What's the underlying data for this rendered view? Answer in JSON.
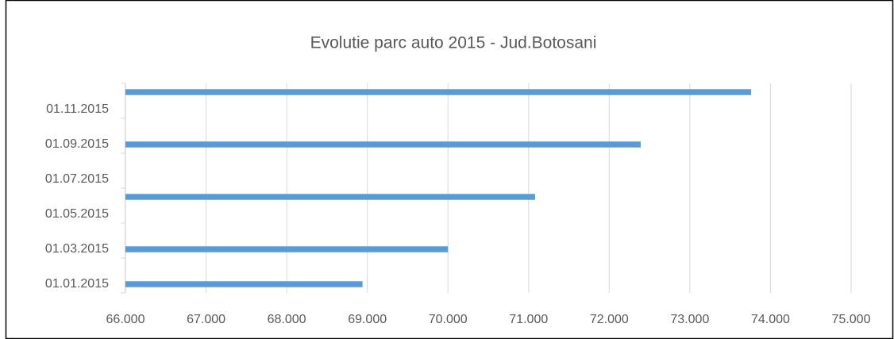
{
  "chart_data": {
    "type": "bar",
    "orientation": "horizontal",
    "title": "Evolutie parc auto 2015 - Jud.Botosani",
    "categories": [
      "01.01.2015",
      null,
      "01.03.2015",
      null,
      "01.05.2015",
      null,
      "01.07.2015",
      null,
      "01.09.2015",
      null,
      "01.11.2015",
      null
    ],
    "values": [
      68940,
      null,
      70000,
      null,
      null,
      71080,
      null,
      null,
      72390,
      null,
      null,
      73760
    ],
    "color": "#5b9bd5",
    "xlim": [
      66000,
      75000
    ],
    "xticks": [
      {
        "value": 66000,
        "label": "66.000"
      },
      {
        "value": 67000,
        "label": "67.000"
      },
      {
        "value": 68000,
        "label": "68.000"
      },
      {
        "value": 69000,
        "label": "69.000"
      },
      {
        "value": 70000,
        "label": "70.000"
      },
      {
        "value": 71000,
        "label": "71.000"
      },
      {
        "value": 72000,
        "label": "72.000"
      },
      {
        "value": 73000,
        "label": "73.000"
      },
      {
        "value": 74000,
        "label": "74.000"
      },
      {
        "value": 75000,
        "label": "75.000"
      }
    ],
    "grid": true
  }
}
